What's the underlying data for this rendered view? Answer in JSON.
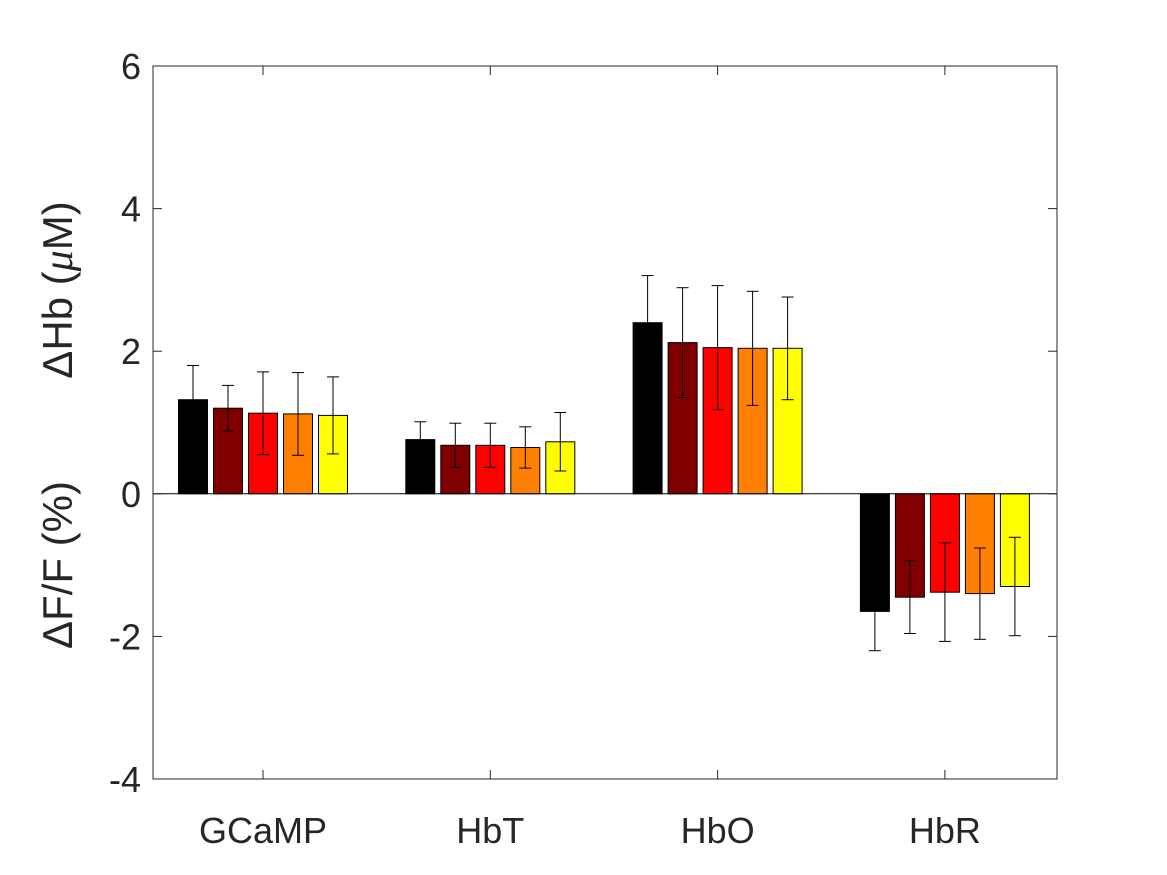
{
  "chart_data": {
    "type": "bar",
    "title": "",
    "xlabel": "",
    "ylabel_left": "ΔF/F (%)",
    "ylabel_right_parts": [
      "ΔHb (",
      "μ",
      "M)"
    ],
    "ylim": [
      -4,
      6
    ],
    "yticks": [
      -4,
      -2,
      0,
      2,
      4,
      6
    ],
    "ytick_labels": [
      "-4",
      "-2",
      "0",
      "2",
      "4",
      "6"
    ],
    "categories": [
      "GCaMP",
      "HbT",
      "HbO",
      "HbR"
    ],
    "grid": false,
    "legend": "none",
    "series": [
      {
        "color": "#000000",
        "values": [
          1.32,
          0.76,
          2.4,
          -1.65
        ],
        "errors": [
          0.48,
          0.25,
          0.66,
          0.55
        ]
      },
      {
        "color": "#800000",
        "values": [
          1.2,
          0.68,
          2.12,
          -1.45
        ],
        "errors": [
          0.32,
          0.31,
          0.77,
          0.51
        ]
      },
      {
        "color": "#ff0000",
        "values": [
          1.13,
          0.68,
          2.05,
          -1.38
        ],
        "errors": [
          0.58,
          0.31,
          0.87,
          0.69
        ]
      },
      {
        "color": "#ff8000",
        "values": [
          1.12,
          0.65,
          2.04,
          -1.4
        ],
        "errors": [
          0.58,
          0.29,
          0.8,
          0.64
        ]
      },
      {
        "color": "#ffff00",
        "values": [
          1.1,
          0.73,
          2.04,
          -1.3
        ],
        "errors": [
          0.54,
          0.41,
          0.72,
          0.69
        ]
      }
    ]
  }
}
